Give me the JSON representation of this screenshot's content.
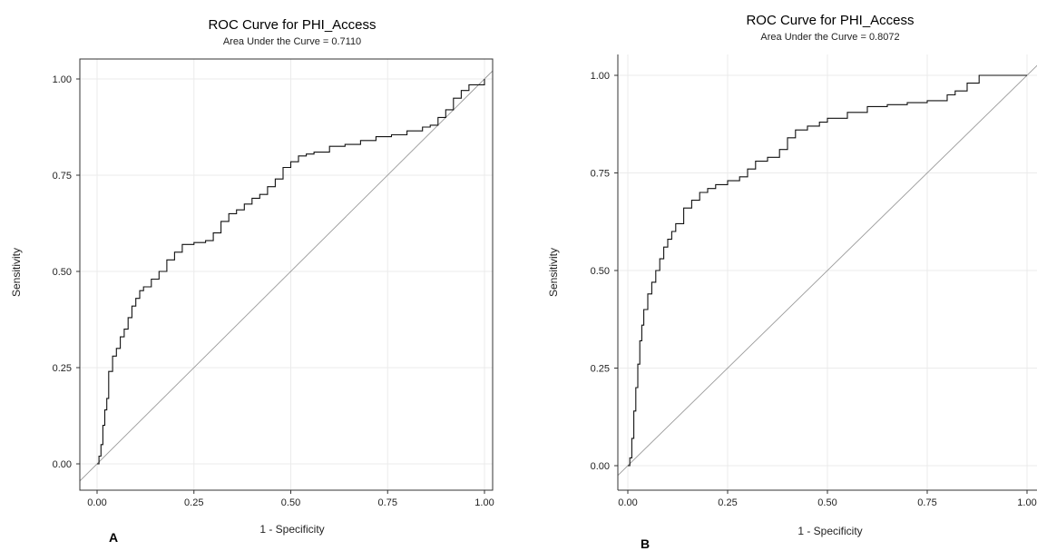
{
  "chart_data": [
    {
      "type": "line",
      "panel_letter": "A",
      "title": "ROC Curve for PHI_Access",
      "subtitle": "Area Under the Curve = 0.7110",
      "xlabel": "1 - Specificity",
      "ylabel": "Sensitivity",
      "xlim": [
        0,
        1
      ],
      "ylim": [
        0,
        1
      ],
      "x_ticks": [
        "0.00",
        "0.25",
        "0.50",
        "0.75",
        "1.00"
      ],
      "y_ticks": [
        "0.00",
        "0.25",
        "0.50",
        "0.75",
        "1.00"
      ],
      "grid": true,
      "reference_line": [
        [
          0,
          0
        ],
        [
          1,
          1
        ]
      ],
      "series": [
        {
          "x": [
            0,
            0.005,
            0.01,
            0.015,
            0.02,
            0.025,
            0.03,
            0.04,
            0.05,
            0.06,
            0.07,
            0.08,
            0.09,
            0.1,
            0.11,
            0.12,
            0.14,
            0.16,
            0.18,
            0.2,
            0.22,
            0.25,
            0.28,
            0.3,
            0.32,
            0.34,
            0.36,
            0.38,
            0.4,
            0.42,
            0.44,
            0.46,
            0.48,
            0.5,
            0.52,
            0.54,
            0.56,
            0.6,
            0.64,
            0.68,
            0.72,
            0.76,
            0.8,
            0.84,
            0.86,
            0.88,
            0.9,
            0.92,
            0.94,
            0.96,
            1.0
          ],
          "y": [
            0,
            0.02,
            0.05,
            0.1,
            0.14,
            0.17,
            0.24,
            0.28,
            0.3,
            0.33,
            0.35,
            0.38,
            0.41,
            0.43,
            0.45,
            0.46,
            0.48,
            0.5,
            0.53,
            0.55,
            0.57,
            0.575,
            0.58,
            0.6,
            0.63,
            0.65,
            0.66,
            0.675,
            0.69,
            0.7,
            0.72,
            0.74,
            0.77,
            0.785,
            0.8,
            0.805,
            0.81,
            0.825,
            0.83,
            0.84,
            0.85,
            0.855,
            0.865,
            0.875,
            0.88,
            0.9,
            0.92,
            0.95,
            0.97,
            0.985,
            1.0
          ]
        }
      ]
    },
    {
      "type": "line",
      "panel_letter": "B",
      "title": "ROC Curve for PHI_Access",
      "subtitle": "Area Under the Curve = 0.8072",
      "xlabel": "1 - Specificity",
      "ylabel": "Sensitivity",
      "xlim": [
        0,
        1
      ],
      "ylim": [
        0,
        1
      ],
      "x_ticks": [
        "0.00",
        "0.25",
        "0.50",
        "0.75",
        "1.00"
      ],
      "y_ticks": [
        "0.00",
        "0.25",
        "0.50",
        "0.75",
        "1.00"
      ],
      "grid": true,
      "reference_line": [
        [
          0,
          0
        ],
        [
          1,
          1
        ]
      ],
      "series": [
        {
          "x": [
            0,
            0.005,
            0.01,
            0.015,
            0.02,
            0.025,
            0.03,
            0.035,
            0.04,
            0.05,
            0.06,
            0.07,
            0.08,
            0.09,
            0.1,
            0.11,
            0.12,
            0.14,
            0.16,
            0.18,
            0.2,
            0.22,
            0.25,
            0.28,
            0.3,
            0.32,
            0.35,
            0.38,
            0.4,
            0.42,
            0.45,
            0.48,
            0.5,
            0.55,
            0.6,
            0.65,
            0.7,
            0.75,
            0.8,
            0.82,
            0.85,
            0.88,
            1.0
          ],
          "y": [
            0,
            0.02,
            0.07,
            0.14,
            0.2,
            0.26,
            0.32,
            0.36,
            0.4,
            0.44,
            0.47,
            0.5,
            0.53,
            0.56,
            0.58,
            0.6,
            0.62,
            0.66,
            0.68,
            0.7,
            0.71,
            0.72,
            0.73,
            0.74,
            0.76,
            0.78,
            0.79,
            0.81,
            0.84,
            0.86,
            0.87,
            0.88,
            0.89,
            0.905,
            0.92,
            0.925,
            0.93,
            0.935,
            0.95,
            0.96,
            0.98,
            1.0,
            1.0
          ]
        }
      ]
    }
  ]
}
